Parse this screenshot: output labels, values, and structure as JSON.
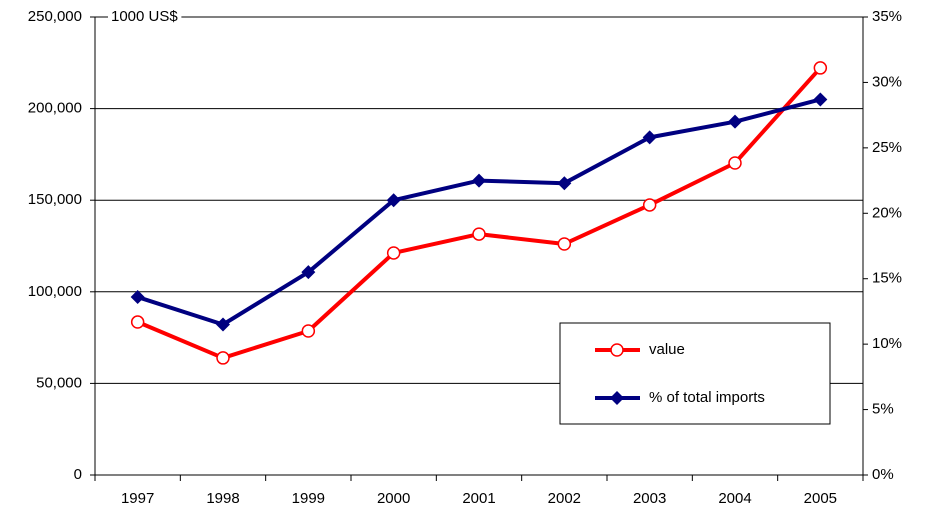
{
  "chart_data": {
    "type": "line",
    "y_label": "1000 US$",
    "categories": [
      "1997",
      "1998",
      "1999",
      "2000",
      "2001",
      "2002",
      "2003",
      "2004",
      "2005"
    ],
    "series": [
      {
        "name": "value",
        "color": "#ff0000",
        "marker": "circle",
        "values": [
          83500,
          63900,
          78600,
          121200,
          131500,
          126100,
          147400,
          170300,
          222200
        ]
      },
      {
        "name": "% of total imports",
        "color": "#000080",
        "marker": "diamond",
        "axis": "y2",
        "values": [
          13.6,
          11.5,
          15.5,
          21.0,
          22.5,
          22.3,
          25.8,
          27.0,
          28.7
        ]
      }
    ],
    "ylim": [
      0,
      250000
    ],
    "yticks": [
      0,
      {
        "value": 50000,
        "label": "50,000"
      },
      {
        "value": 100000,
        "label": "100,000"
      },
      {
        "value": 150000,
        "label": "150,000"
      },
      {
        "value": 200000,
        "label": "200,000"
      },
      {
        "value": 250000,
        "label": "250,000"
      }
    ],
    "y2lim": [
      0,
      35
    ],
    "y2ticks": [
      {
        "value": 0,
        "label": "0%"
      },
      {
        "value": 5,
        "label": "5%"
      },
      {
        "value": 10,
        "label": "10%"
      },
      {
        "value": 15,
        "label": "15%"
      },
      {
        "value": 20,
        "label": "20%"
      },
      {
        "value": 25,
        "label": "25%"
      },
      {
        "value": 30,
        "label": "30%"
      },
      {
        "value": 35,
        "label": "35%"
      }
    ],
    "grid": true,
    "legend": "lower right"
  }
}
